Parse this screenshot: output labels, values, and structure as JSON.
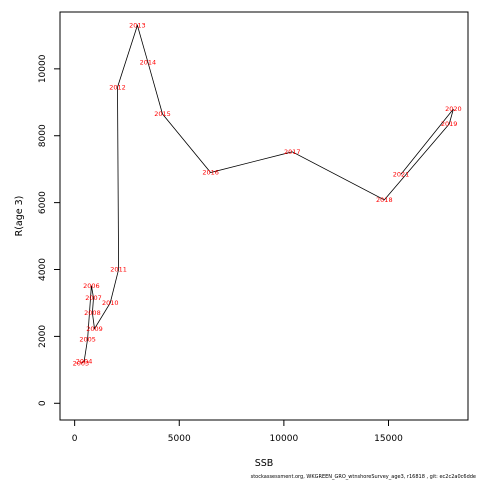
{
  "chart_data": {
    "type": "line",
    "title": "",
    "xlabel": "SSB",
    "ylabel": "R(age 3)",
    "xlim": [
      -700,
      18800
    ],
    "ylim": [
      -500,
      11700
    ],
    "xticks": [
      0,
      5000,
      10000,
      15000
    ],
    "yticks": [
      0,
      2000,
      4000,
      6000,
      8000,
      10000
    ],
    "grid": false,
    "points": [
      {
        "year": "2003",
        "x": 300,
        "y": 1200
      },
      {
        "year": "2004",
        "x": 450,
        "y": 1250
      },
      {
        "year": "2005",
        "x": 620,
        "y": 1920
      },
      {
        "year": "2006",
        "x": 800,
        "y": 3520
      },
      {
        "year": "2007",
        "x": 900,
        "y": 3150
      },
      {
        "year": "2008",
        "x": 850,
        "y": 2700
      },
      {
        "year": "2009",
        "x": 950,
        "y": 2230
      },
      {
        "year": "2010",
        "x": 1700,
        "y": 3000
      },
      {
        "year": "2011",
        "x": 2100,
        "y": 4000
      },
      {
        "year": "2012",
        "x": 2050,
        "y": 9450
      },
      {
        "year": "2013",
        "x": 3000,
        "y": 11300
      },
      {
        "year": "2014",
        "x": 3500,
        "y": 10200
      },
      {
        "year": "2015",
        "x": 4200,
        "y": 8650
      },
      {
        "year": "2016",
        "x": 6500,
        "y": 6900
      },
      {
        "year": "2017",
        "x": 10400,
        "y": 7520
      },
      {
        "year": "2018",
        "x": 14800,
        "y": 6080
      },
      {
        "year": "2019",
        "x": 17900,
        "y": 8350
      },
      {
        "year": "2020",
        "x": 18100,
        "y": 8800
      },
      {
        "year": "2021",
        "x": 15600,
        "y": 6850
      }
    ]
  },
  "footer": "stockassessment.org,  WKGREEN_GRO_wtnshoreSurvey_age3,  r16818 ,  git: ec2c2a0c6dde"
}
